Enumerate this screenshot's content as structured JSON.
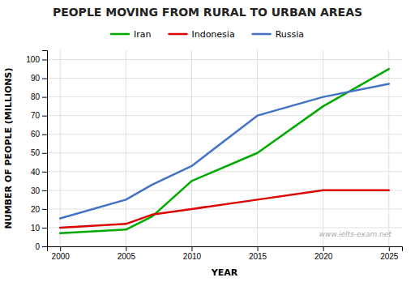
{
  "chart_data": {
    "type": "line",
    "title": "PEOPLE MOVING FROM RURAL TO URBAN AREAS",
    "xlabel": "YEAR",
    "ylabel": "NUMBER OF PEOPLE (MILLIONS)",
    "annotations": [
      "www.ielts-exam.net"
    ],
    "x": [
      2000,
      2005,
      2007,
      2010,
      2015,
      2020,
      2025
    ],
    "series": [
      {
        "name": "Iran",
        "color": "#00aa00",
        "values": [
          7,
          9,
          16,
          35,
          50,
          75,
          95
        ]
      },
      {
        "name": "Indonesia",
        "color": "#dd0000",
        "values": [
          10,
          12,
          17,
          20,
          25,
          30,
          30
        ]
      },
      {
        "name": "Russia",
        "color": "#4472c4",
        "values": [
          15,
          25,
          33,
          43,
          70,
          80,
          87
        ]
      }
    ],
    "xlim": [
      1999,
      2026
    ],
    "xticks": [
      2000,
      2005,
      2010,
      2015,
      2020,
      2025
    ],
    "ylim": [
      0,
      105
    ],
    "yticks": [
      0,
      10,
      20,
      30,
      40,
      50,
      60,
      70,
      80,
      90,
      100
    ],
    "grid": true,
    "legend": "top"
  }
}
